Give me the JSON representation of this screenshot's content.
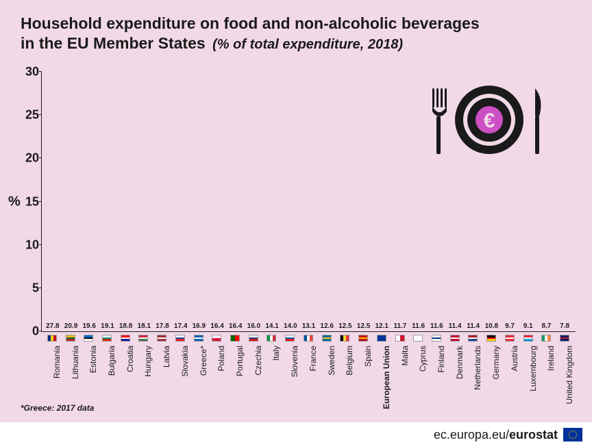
{
  "title": {
    "line1": "Household expenditure on food and non-alcoholic beverages",
    "line2": "in the EU Member States",
    "subtitle": "(% of total expenditure, 2018)",
    "fontsize": 23,
    "subtitle_fontsize": 20,
    "color": "#1a1a1a"
  },
  "chart": {
    "type": "bar",
    "y_axis_label": "%",
    "y_axis_fontsize": 20,
    "ylim": [
      0,
      30
    ],
    "ytick_step": 5,
    "ytick_fontsize": 18,
    "bar_color": "#cc4fc4",
    "value_label_fontsize": 10,
    "x_label_fontsize": 12,
    "background_color": "#f2d9e8",
    "axis_color": "#1a1a1a",
    "data": [
      {
        "country": "Romania",
        "value": 27.8,
        "flag": [
          "#002b7f",
          "#fcd116",
          "#ce1126"
        ],
        "bold": false
      },
      {
        "country": "Lithuania",
        "value": 20.9,
        "flag": [
          "#fdb913",
          "#006a44",
          "#c1272d"
        ],
        "bold": false,
        "horiz": true
      },
      {
        "country": "Estonia",
        "value": 19.6,
        "flag": [
          "#0072ce",
          "#000000",
          "#ffffff"
        ],
        "bold": false,
        "horiz": true
      },
      {
        "country": "Bulgaria",
        "value": 19.1,
        "flag": [
          "#ffffff",
          "#00966e",
          "#d62612"
        ],
        "bold": false,
        "horiz": true
      },
      {
        "country": "Croatia",
        "value": 18.8,
        "flag": [
          "#ff0000",
          "#ffffff",
          "#171796"
        ],
        "bold": false,
        "horiz": true
      },
      {
        "country": "Hungary",
        "value": 18.1,
        "flag": [
          "#ce2939",
          "#ffffff",
          "#477050"
        ],
        "bold": false,
        "horiz": true
      },
      {
        "country": "Latvia",
        "value": 17.8,
        "flag": [
          "#9e3039",
          "#ffffff",
          "#9e3039"
        ],
        "bold": false,
        "horiz": true
      },
      {
        "country": "Slovakia",
        "value": 17.4,
        "flag": [
          "#ffffff",
          "#0b4ea2",
          "#ee1c25"
        ],
        "bold": false,
        "horiz": true
      },
      {
        "country": "Greece*",
        "value": 16.9,
        "flag": [
          "#0d5eaf",
          "#ffffff",
          "#0d5eaf"
        ],
        "bold": false,
        "horiz": true
      },
      {
        "country": "Poland",
        "value": 16.4,
        "flag": [
          "#ffffff",
          "#dc143c"
        ],
        "bold": false,
        "horiz": true
      },
      {
        "country": "Portugal",
        "value": 16.4,
        "flag": [
          "#006600",
          "#ff0000"
        ],
        "bold": false
      },
      {
        "country": "Czechia",
        "value": 16.0,
        "flag": [
          "#ffffff",
          "#11457e",
          "#d7141a"
        ],
        "bold": false,
        "horiz": true
      },
      {
        "country": "Italy",
        "value": 14.1,
        "flag": [
          "#009246",
          "#ffffff",
          "#ce2b37"
        ],
        "bold": false
      },
      {
        "country": "Slovenia",
        "value": 14.0,
        "flag": [
          "#ffffff",
          "#005da4",
          "#ed1c24"
        ],
        "bold": false,
        "horiz": true
      },
      {
        "country": "France",
        "value": 13.1,
        "flag": [
          "#0055a4",
          "#ffffff",
          "#ef4135"
        ],
        "bold": false
      },
      {
        "country": "Sweden",
        "value": 12.6,
        "flag": [
          "#006aa7",
          "#fecc02",
          "#006aa7"
        ],
        "bold": false,
        "horiz": true
      },
      {
        "country": "Belgium",
        "value": 12.5,
        "flag": [
          "#000000",
          "#fdda24",
          "#ef3340"
        ],
        "bold": false
      },
      {
        "country": "Spain",
        "value": 12.5,
        "flag": [
          "#c60b1e",
          "#ffc400",
          "#c60b1e"
        ],
        "bold": false,
        "horiz": true
      },
      {
        "country": "European Union",
        "value": 12.1,
        "flag": [
          "#003399"
        ],
        "bold": true
      },
      {
        "country": "Malta",
        "value": 11.7,
        "flag": [
          "#ffffff",
          "#cf142b"
        ],
        "bold": false
      },
      {
        "country": "Cyprus",
        "value": 11.6,
        "flag": [
          "#ffffff"
        ],
        "bold": false
      },
      {
        "country": "Finland",
        "value": 11.6,
        "flag": [
          "#ffffff",
          "#003580",
          "#ffffff"
        ],
        "bold": false,
        "horiz": true
      },
      {
        "country": "Denmark",
        "value": 11.4,
        "flag": [
          "#c60c30",
          "#ffffff",
          "#c60c30"
        ],
        "bold": false,
        "horiz": true
      },
      {
        "country": "Netherlands",
        "value": 11.4,
        "flag": [
          "#ae1c28",
          "#ffffff",
          "#21468b"
        ],
        "bold": false,
        "horiz": true
      },
      {
        "country": "Germany",
        "value": 10.8,
        "flag": [
          "#000000",
          "#dd0000",
          "#ffce00"
        ],
        "bold": false,
        "horiz": true
      },
      {
        "country": "Austria",
        "value": 9.7,
        "flag": [
          "#ed2939",
          "#ffffff",
          "#ed2939"
        ],
        "bold": false,
        "horiz": true
      },
      {
        "country": "Luxembourg",
        "value": 9.1,
        "flag": [
          "#ed2939",
          "#ffffff",
          "#00a1de"
        ],
        "bold": false,
        "horiz": true
      },
      {
        "country": "Ireland",
        "value": 8.7,
        "flag": [
          "#169b62",
          "#ffffff",
          "#ff883e"
        ],
        "bold": false
      },
      {
        "country": "United Kingdom",
        "value": 7.8,
        "flag": [
          "#012169",
          "#c8102e",
          "#012169"
        ],
        "bold": false,
        "horiz": true
      }
    ]
  },
  "footnote": {
    "text": "*Greece: 2017 data",
    "fontsize": 12
  },
  "footer": {
    "url_prefix": "ec.europa.eu/",
    "url_bold": "eurostat"
  },
  "decor": {
    "plate_color": "#1a1a1a",
    "rim_color": "#f2d9e8",
    "euro_color": "#cc4fc4"
  }
}
